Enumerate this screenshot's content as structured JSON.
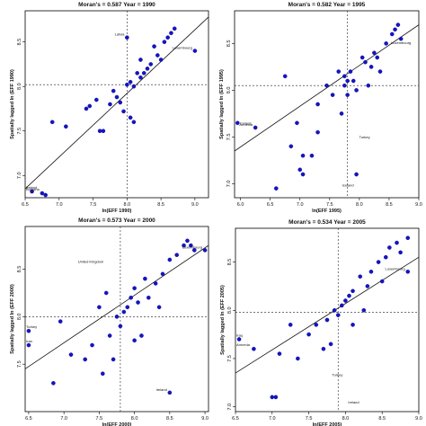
{
  "chart_data": [
    {
      "type": "scatter",
      "title": "Moran's = 0.587  Year = 1990",
      "xlabel": "ln(EFF 1990)",
      "ylabel": "Spatially lagged ln (EFF 1990)",
      "xlim": [
        6.5,
        9.2
      ],
      "ylim": [
        6.75,
        8.85
      ],
      "xticks": [
        6.5,
        7.0,
        7.5,
        8.0,
        8.5,
        9.0
      ],
      "yticks": [
        7.0,
        7.5,
        8.0,
        8.5
      ],
      "vline": 8.0,
      "hline": 8.02,
      "fit": [
        [
          6.5,
          6.85
        ],
        [
          9.2,
          8.78
        ]
      ],
      "points": [
        [
          6.6,
          6.82
        ],
        [
          6.75,
          6.8
        ],
        [
          6.8,
          6.78
        ],
        [
          6.9,
          7.6
        ],
        [
          7.1,
          7.55
        ],
        [
          7.4,
          7.75
        ],
        [
          7.45,
          7.78
        ],
        [
          7.55,
          7.85
        ],
        [
          7.6,
          7.5
        ],
        [
          7.65,
          7.5
        ],
        [
          7.75,
          7.8
        ],
        [
          7.8,
          7.95
        ],
        [
          7.85,
          7.88
        ],
        [
          7.9,
          7.82
        ],
        [
          7.95,
          7.72
        ],
        [
          8.0,
          8.02
        ],
        [
          8.0,
          8.55
        ],
        [
          8.05,
          7.65
        ],
        [
          8.05,
          8.05
        ],
        [
          8.1,
          7.6
        ],
        [
          8.1,
          8.0
        ],
        [
          8.15,
          8.15
        ],
        [
          8.2,
          8.1
        ],
        [
          8.2,
          8.3
        ],
        [
          8.25,
          8.15
        ],
        [
          8.3,
          8.2
        ],
        [
          8.35,
          8.25
        ],
        [
          8.4,
          8.45
        ],
        [
          8.45,
          8.35
        ],
        [
          8.5,
          8.3
        ],
        [
          8.55,
          8.5
        ],
        [
          8.6,
          8.55
        ],
        [
          8.65,
          8.6
        ],
        [
          8.7,
          8.65
        ],
        [
          9.0,
          8.4
        ]
      ],
      "annotations": [
        {
          "text": "Latvia",
          "x": 8.0,
          "y": 8.55,
          "pos": "left"
        },
        {
          "text": "Luxembourg",
          "x": 9.0,
          "y": 8.4,
          "pos": "left"
        },
        {
          "text": "Bulgaria",
          "x": 6.75,
          "y": 6.8,
          "pos": "left"
        },
        {
          "text": "Ireland",
          "x": 6.6,
          "y": 6.82,
          "pos": "left"
        }
      ]
    },
    {
      "type": "scatter",
      "title": "Moran's = 0.582  Year = 1995",
      "xlabel": "ln(EFF 1995)",
      "ylabel": "Spatially lagged ln (EFF 1995)",
      "xlim": [
        5.9,
        9.0
      ],
      "ylim": [
        6.85,
        8.85
      ],
      "xticks": [
        6.0,
        6.5,
        7.0,
        7.5,
        8.0,
        8.5,
        9.0
      ],
      "yticks": [
        7.0,
        7.5,
        8.0,
        8.5
      ],
      "vline": 7.8,
      "hline": 8.05,
      "fit": [
        [
          5.9,
          7.35
        ],
        [
          9.0,
          8.7
        ]
      ],
      "points": [
        [
          5.95,
          7.65
        ],
        [
          6.25,
          7.6
        ],
        [
          6.6,
          6.95
        ],
        [
          6.75,
          8.15
        ],
        [
          6.85,
          7.4
        ],
        [
          6.95,
          7.65
        ],
        [
          7.0,
          7.15
        ],
        [
          7.05,
          7.3
        ],
        [
          7.05,
          7.1
        ],
        [
          7.2,
          7.3
        ],
        [
          7.3,
          7.55
        ],
        [
          7.3,
          7.85
        ],
        [
          7.45,
          8.05
        ],
        [
          7.55,
          7.95
        ],
        [
          7.65,
          8.2
        ],
        [
          7.7,
          7.75
        ],
        [
          7.75,
          8.05
        ],
        [
          7.75,
          8.15
        ],
        [
          7.8,
          7.95
        ],
        [
          7.8,
          8.1
        ],
        [
          7.85,
          8.2
        ],
        [
          7.9,
          8.1
        ],
        [
          7.95,
          8.0
        ],
        [
          7.95,
          7.1
        ],
        [
          8.05,
          8.35
        ],
        [
          8.1,
          8.3
        ],
        [
          8.15,
          8.05
        ],
        [
          8.2,
          8.25
        ],
        [
          8.25,
          8.4
        ],
        [
          8.3,
          8.35
        ],
        [
          8.35,
          8.2
        ],
        [
          8.45,
          8.5
        ],
        [
          8.55,
          8.6
        ],
        [
          8.6,
          8.65
        ],
        [
          8.65,
          8.7
        ],
        [
          8.7,
          8.55
        ]
      ],
      "annotations": [
        {
          "text": "Luxembourg",
          "x": 8.7,
          "y": 8.55,
          "pos": "below"
        },
        {
          "text": "Ireland",
          "x": 5.95,
          "y": 7.65,
          "pos": "right"
        },
        {
          "text": "Armenia",
          "x": 6.25,
          "y": 7.6,
          "pos": "left"
        },
        {
          "text": "Turkey",
          "x": 7.95,
          "y": 7.5,
          "pos": "right"
        },
        {
          "text": "Iceland",
          "x": 7.95,
          "y": 6.95,
          "pos": "left"
        }
      ]
    },
    {
      "type": "scatter",
      "title": "Moran's = 0.573  Year = 2000",
      "xlabel": "ln(EFF 2000)",
      "ylabel": "Spatially lagged ln (EFF 2000)",
      "xlim": [
        6.45,
        9.05
      ],
      "ylim": [
        7.0,
        8.95
      ],
      "xticks": [
        6.5,
        7.0,
        7.5,
        8.0,
        8.5,
        9.0
      ],
      "yticks": [
        7.5,
        8.0,
        8.5
      ],
      "vline": 7.8,
      "hline": 8.0,
      "fit": [
        [
          6.45,
          7.45
        ],
        [
          9.05,
          8.75
        ]
      ],
      "points": [
        [
          6.5,
          7.85
        ],
        [
          6.5,
          7.7
        ],
        [
          6.85,
          7.3
        ],
        [
          6.95,
          7.95
        ],
        [
          7.1,
          7.6
        ],
        [
          7.3,
          7.55
        ],
        [
          7.4,
          7.7
        ],
        [
          7.5,
          8.1
        ],
        [
          7.55,
          7.4
        ],
        [
          7.6,
          8.25
        ],
        [
          7.65,
          7.8
        ],
        [
          7.7,
          7.55
        ],
        [
          7.75,
          8.0
        ],
        [
          7.8,
          7.9
        ],
        [
          7.85,
          8.05
        ],
        [
          7.9,
          8.1
        ],
        [
          7.95,
          8.2
        ],
        [
          8.0,
          8.3
        ],
        [
          8.0,
          7.75
        ],
        [
          8.05,
          8.15
        ],
        [
          8.1,
          7.8
        ],
        [
          8.15,
          8.4
        ],
        [
          8.2,
          8.2
        ],
        [
          8.3,
          8.35
        ],
        [
          8.35,
          8.1
        ],
        [
          8.4,
          8.45
        ],
        [
          8.5,
          8.6
        ],
        [
          8.6,
          8.65
        ],
        [
          8.7,
          8.75
        ],
        [
          8.75,
          8.8
        ],
        [
          8.8,
          8.75
        ],
        [
          8.85,
          8.7
        ],
        [
          9.0,
          8.7
        ],
        [
          8.5,
          7.2
        ]
      ],
      "annotations": [
        {
          "text": "United Kingdom",
          "x": 7.6,
          "y": 8.55,
          "pos": "left"
        },
        {
          "text": "Luxembourg",
          "x": 9.0,
          "y": 8.7,
          "pos": "left"
        },
        {
          "text": "Turkey",
          "x": 6.5,
          "y": 7.85,
          "pos": "left"
        },
        {
          "text": "Iran",
          "x": 6.5,
          "y": 7.7,
          "pos": "left"
        },
        {
          "text": "Ireland",
          "x": 8.5,
          "y": 7.2,
          "pos": "left"
        }
      ]
    },
    {
      "type": "scatter",
      "title": "Moran's = 0.534  Year = 2005",
      "xlabel": "ln(EFF 2005)",
      "ylabel": "Spatially lagged ln (EFF 2005)",
      "xlim": [
        6.5,
        9.0
      ],
      "ylim": [
        6.95,
        8.85
      ],
      "xticks": [
        6.5,
        7.0,
        7.5,
        8.0,
        8.5,
        9.0
      ],
      "yticks": [
        7.0,
        7.5,
        8.0,
        8.5
      ],
      "vline": 7.9,
      "hline": 7.98,
      "fit": [
        [
          6.5,
          7.35
        ],
        [
          9.0,
          8.55
        ]
      ],
      "points": [
        [
          6.55,
          7.7
        ],
        [
          6.75,
          7.6
        ],
        [
          7.0,
          7.1
        ],
        [
          7.05,
          7.1
        ],
        [
          7.1,
          7.55
        ],
        [
          7.25,
          7.85
        ],
        [
          7.35,
          7.5
        ],
        [
          7.5,
          7.75
        ],
        [
          7.6,
          7.85
        ],
        [
          7.7,
          7.6
        ],
        [
          7.75,
          7.9
        ],
        [
          7.8,
          7.65
        ],
        [
          7.85,
          8.0
        ],
        [
          7.9,
          7.95
        ],
        [
          7.95,
          8.05
        ],
        [
          8.0,
          8.1
        ],
        [
          8.05,
          8.15
        ],
        [
          8.1,
          8.2
        ],
        [
          8.1,
          7.85
        ],
        [
          8.2,
          8.35
        ],
        [
          8.25,
          8.0
        ],
        [
          8.3,
          8.25
        ],
        [
          8.35,
          8.4
        ],
        [
          8.45,
          8.5
        ],
        [
          8.5,
          8.3
        ],
        [
          8.55,
          8.55
        ],
        [
          8.6,
          8.65
        ],
        [
          8.7,
          8.7
        ],
        [
          8.75,
          8.6
        ],
        [
          8.85,
          8.4
        ],
        [
          8.85,
          8.75
        ]
      ],
      "annotations": [
        {
          "text": "Luxembourg",
          "x": 8.85,
          "y": 8.4,
          "pos": "left"
        },
        {
          "text": "Iraq",
          "x": 6.55,
          "y": 7.7,
          "pos": "left"
        },
        {
          "text": "Armenia",
          "x": 6.75,
          "y": 7.6,
          "pos": "left"
        },
        {
          "text": "Turkey",
          "x": 8.0,
          "y": 7.3,
          "pos": "left"
        },
        {
          "text": "Ireland",
          "x": 8.0,
          "y": 7.05,
          "pos": "right"
        }
      ]
    }
  ]
}
